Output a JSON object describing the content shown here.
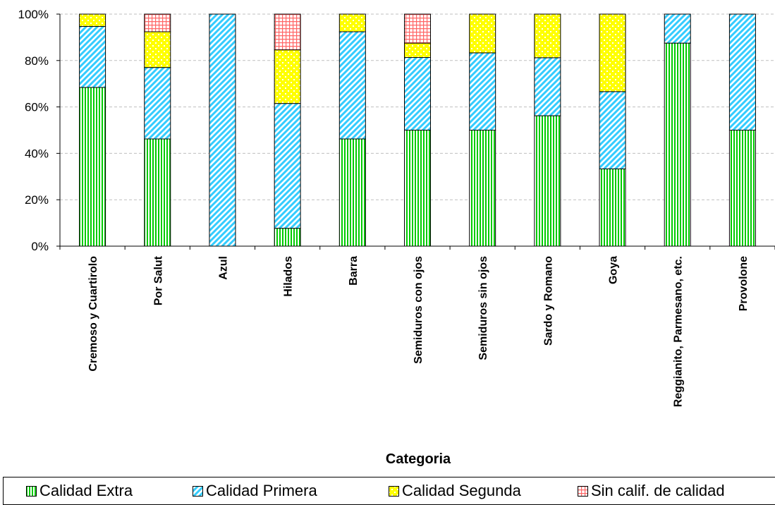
{
  "chart_data": {
    "type": "bar",
    "stacked": true,
    "percent": true,
    "xlabel": "Categoria",
    "ylabel": "",
    "ylim": [
      0,
      100
    ],
    "yticks": [
      "0%",
      "20%",
      "40%",
      "60%",
      "80%",
      "100%"
    ],
    "grid": true,
    "legend_position": "bottom",
    "categories": [
      "Cremoso y Cuartirolo",
      "Por Salut",
      "Azul",
      "Hilados",
      "Barra",
      "Semiduros con ojos",
      "Semiduros sin ojos",
      "Sardo y Romano",
      "Goya",
      "Reggianito, Parmesano, etc.",
      "Provolone"
    ],
    "series": [
      {
        "name": "Calidad Extra",
        "color": "#00cc00",
        "values": [
          68.4,
          46.2,
          0,
          7.7,
          46.2,
          50.0,
          50.0,
          56.2,
          33.3,
          87.5,
          50.0
        ]
      },
      {
        "name": "Calidad Primera",
        "color": "#33ccff",
        "values": [
          26.3,
          30.8,
          100,
          53.8,
          46.2,
          31.3,
          33.3,
          25.0,
          33.3,
          12.5,
          50.0
        ]
      },
      {
        "name": "Calidad Segunda",
        "color": "#ffff00",
        "values": [
          5.3,
          15.4,
          0,
          23.1,
          7.6,
          6.2,
          16.7,
          18.8,
          33.4,
          0,
          0
        ]
      },
      {
        "name": "Sin calif. de calidad",
        "color": "#ff9999",
        "values": [
          0,
          7.6,
          0,
          15.4,
          0,
          12.5,
          0,
          0,
          0,
          0,
          0
        ]
      }
    ]
  }
}
